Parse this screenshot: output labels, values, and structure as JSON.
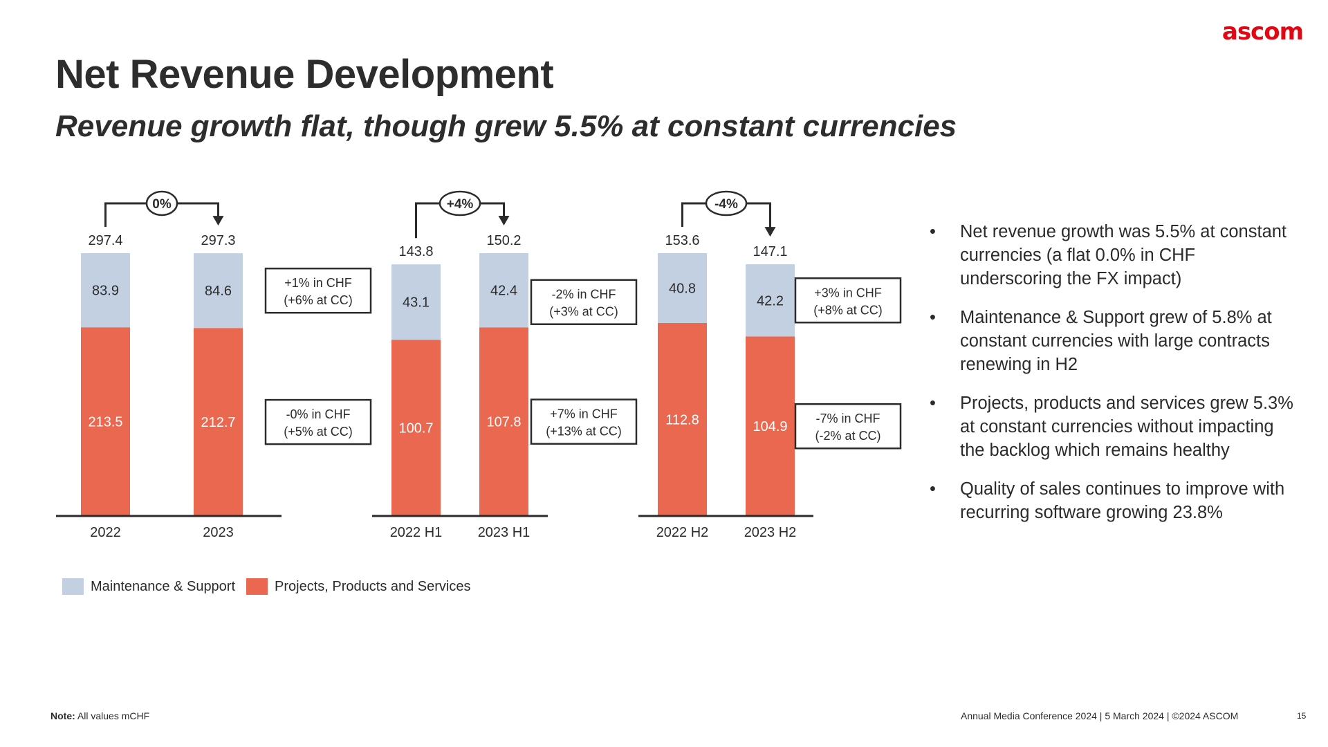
{
  "brand": {
    "logo_text": "ascom",
    "logo_color": "#e30613"
  },
  "header": {
    "title": "Net Revenue Development",
    "subtitle": "Revenue growth flat, though grew 5.5% at constant currencies"
  },
  "colors": {
    "maintenance": "#c3d0e2",
    "projects": "#ea6750",
    "text": "#2b2b2b",
    "line": "#2b2b2b"
  },
  "chart_data": {
    "type": "bar",
    "stacked": true,
    "unit": "mCHF",
    "title": "",
    "legend_position": "bottom-left",
    "series_names": [
      "Maintenance & Support",
      "Projects, Products and Services"
    ],
    "panels": [
      {
        "categories": [
          "2022",
          "2023"
        ],
        "series": [
          {
            "name": "Maintenance & Support",
            "values": [
              83.9,
              84.6
            ]
          },
          {
            "name": "Projects, Products and Services",
            "values": [
              213.5,
              212.7
            ]
          }
        ],
        "totals": [
          "297.4",
          "297.3"
        ],
        "change_badge": "0%",
        "annotations": [
          {
            "series": "Maintenance & Support",
            "line1": "+1% in CHF",
            "line2": "(+6% at CC)"
          },
          {
            "series": "Projects, Products and Services",
            "line1": "-0% in CHF",
            "line2": "(+5% at CC)"
          }
        ]
      },
      {
        "categories": [
          "2022 H1",
          "2023 H1"
        ],
        "series": [
          {
            "name": "Maintenance & Support",
            "values": [
              43.1,
              42.4
            ]
          },
          {
            "name": "Projects, Products and Services",
            "values": [
              100.7,
              107.8
            ]
          }
        ],
        "totals": [
          "143.8",
          "150.2"
        ],
        "change_badge": "+4%",
        "annotations": [
          {
            "series": "Maintenance & Support",
            "line1": "-2% in CHF",
            "line2": "(+3% at CC)"
          },
          {
            "series": "Projects, Products and Services",
            "line1": "+7% in CHF",
            "line2": "(+13% at CC)"
          }
        ]
      },
      {
        "categories": [
          "2022 H2",
          "2023 H2"
        ],
        "series": [
          {
            "name": "Maintenance & Support",
            "values": [
              40.8,
              42.2
            ]
          },
          {
            "name": "Projects, Products and Services",
            "values": [
              112.8,
              104.9
            ]
          }
        ],
        "totals": [
          "153.6",
          "147.1"
        ],
        "change_badge": "-4%",
        "annotations": [
          {
            "series": "Maintenance & Support",
            "line1": "+3% in CHF",
            "line2": "(+8% at CC)"
          },
          {
            "series": "Projects, Products and Services",
            "line1": "-7% in CHF",
            "line2": "(-2% at CC)"
          }
        ]
      }
    ]
  },
  "legend": {
    "items": [
      {
        "label": "Maintenance & Support"
      },
      {
        "label": "Projects, Products and Services"
      }
    ]
  },
  "bullets": [
    "Net revenue growth was 5.5% at constant currencies (a flat 0.0% in CHF underscoring the FX impact)",
    "Maintenance & Support grew of 5.8% at constant currencies with large contracts renewing in H2",
    "Projects, products and services grew 5.3% at constant currencies without impacting the backlog which remains healthy",
    "Quality of sales continues to improve with recurring software growing 23.8%"
  ],
  "bullet_glyph": "•",
  "footer": {
    "note_label": "Note:",
    "note_text": " All values mCHF",
    "conference": "Annual Media Conference 2024 | 5 March 2024 | ©2024 ASCOM",
    "page_number": "15"
  }
}
